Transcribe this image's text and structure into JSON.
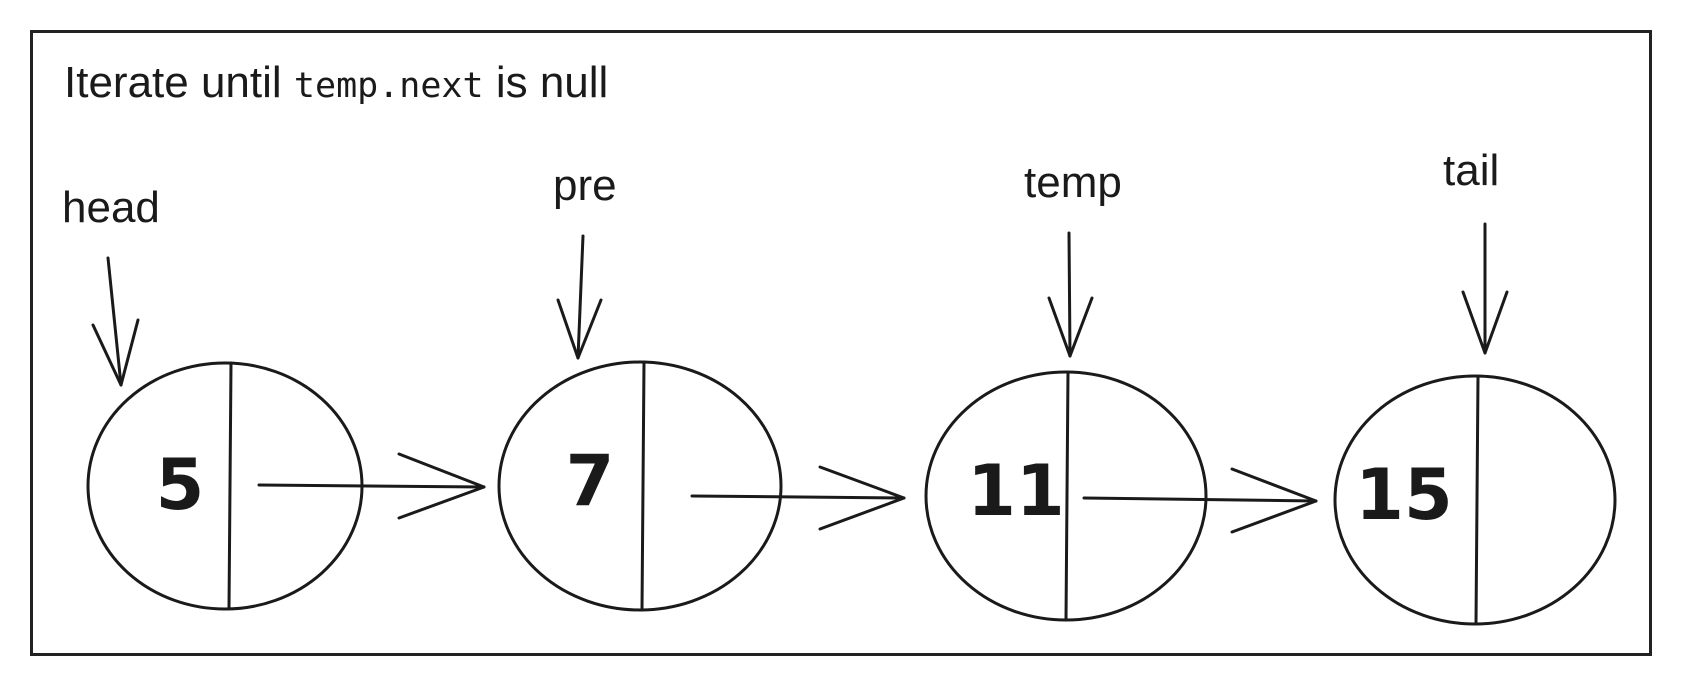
{
  "caption": {
    "prefix": "Iterate until",
    "code": "temp.next",
    "suffix": "is null"
  },
  "nodes": [
    {
      "value": "5"
    },
    {
      "value": "7"
    },
    {
      "value": "11"
    },
    {
      "value": "15"
    }
  ],
  "pointers": [
    {
      "label": "head",
      "node": 0
    },
    {
      "label": "pre",
      "node": 1
    },
    {
      "label": "temp",
      "node": 2
    },
    {
      "label": "tail",
      "node": 3
    }
  ],
  "colors": {
    "stroke": "#1a1a1a",
    "background": "#ffffff"
  }
}
